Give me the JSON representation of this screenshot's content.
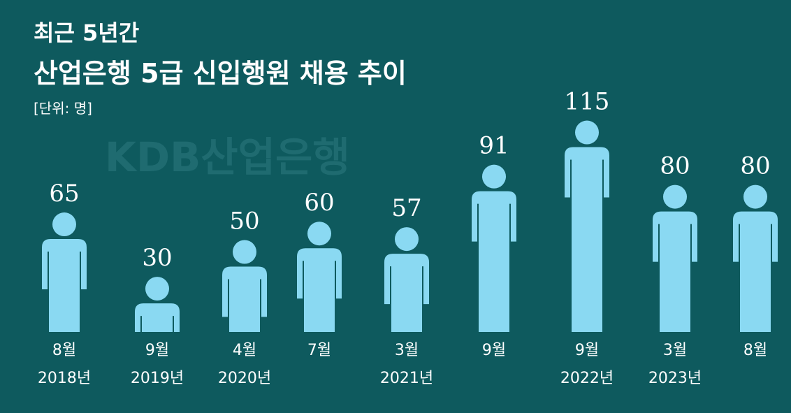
{
  "chart_data": {
    "type": "pictogram",
    "title": "최근 5년간",
    "subtitle": "산업은행 5급 신입행원 채용 추이",
    "unit": "[단위: 명]",
    "watermark": "KDB산업은행",
    "categories": [
      "8월",
      "9월",
      "4월",
      "7월",
      "3월",
      "9월",
      "9월",
      "3월",
      "8월"
    ],
    "years": [
      "2018년",
      "2019년",
      "2020년",
      null,
      "2021년",
      null,
      "2022년",
      "2023년",
      null
    ],
    "values": [
      65,
      30,
      50,
      60,
      57,
      91,
      115,
      80,
      80
    ],
    "color": "#8ad9f2"
  }
}
